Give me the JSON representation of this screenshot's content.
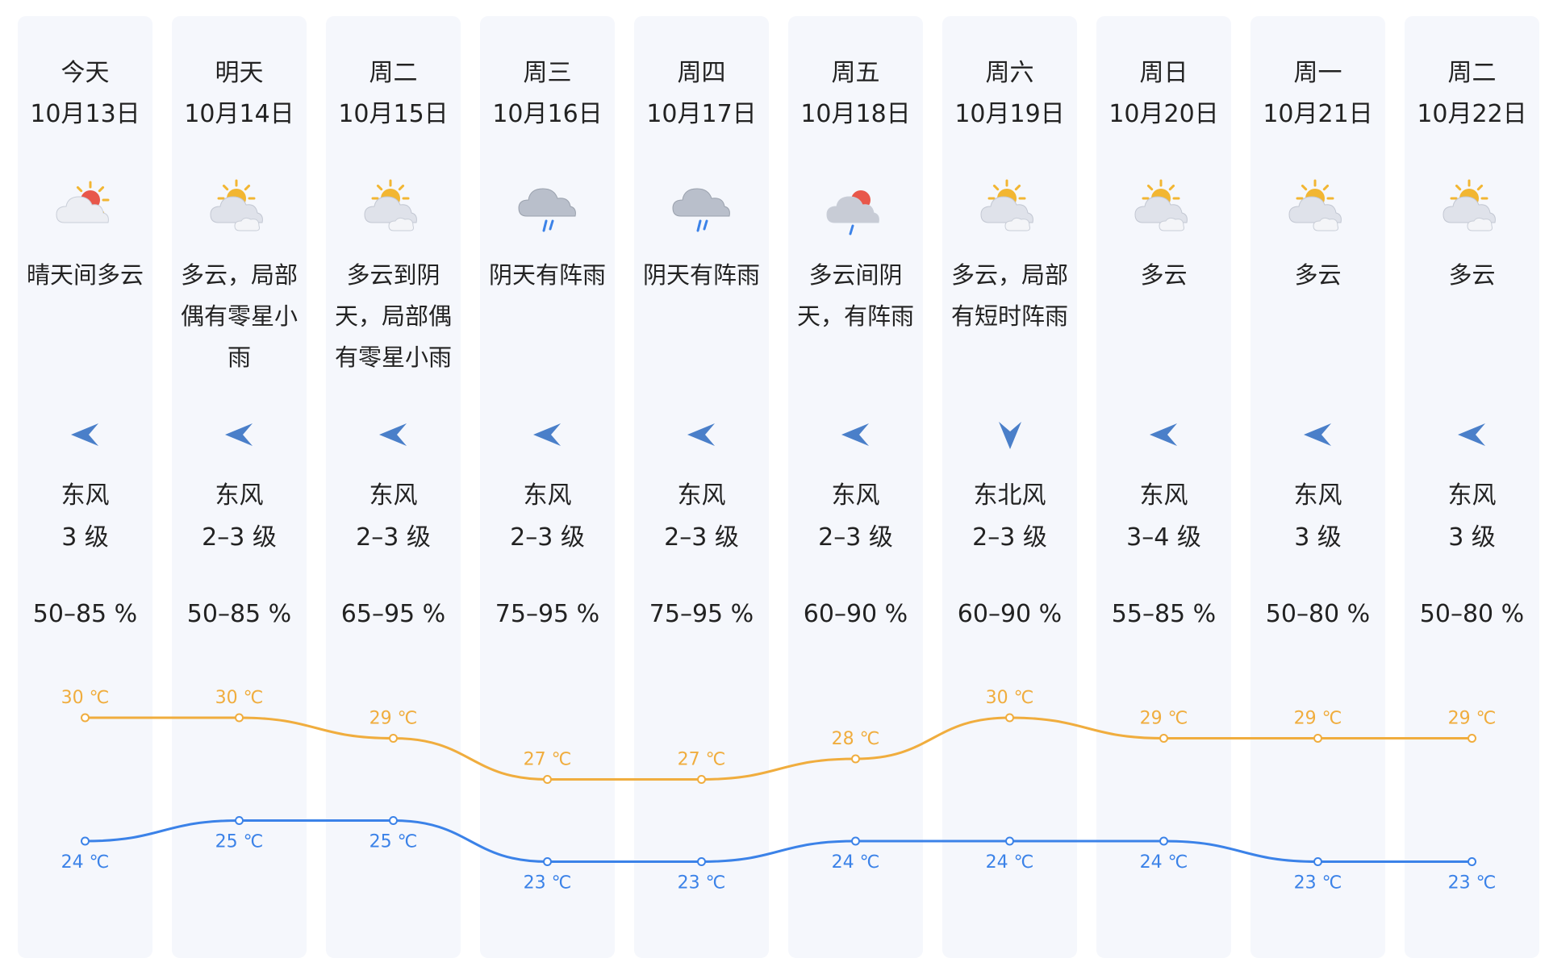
{
  "colors": {
    "high": "#f0ad3e",
    "low": "#3b82e8",
    "column_bg": "#f5f7fc"
  },
  "temp_unit": "℃",
  "humidity_unit": "%",
  "days": [
    {
      "day": "今天",
      "date": "10月13日",
      "icon": "sun-cloud-icon",
      "desc": "晴天间多云",
      "arrow": "wind-east-arrow-icon",
      "wind_dir": "东风",
      "wind_level": "3 级",
      "humidity": "50–85 %",
      "high": 30,
      "low": 24
    },
    {
      "day": "明天",
      "date": "10月14日",
      "icon": "partly-cloudy-icon",
      "desc": "多云，局部偶有零星小雨",
      "arrow": "wind-east-arrow-icon",
      "wind_dir": "东风",
      "wind_level": "2–3 级",
      "humidity": "50–85 %",
      "high": 30,
      "low": 25
    },
    {
      "day": "周二",
      "date": "10月15日",
      "icon": "partly-cloudy-icon",
      "desc": "多云到阴天，局部偶有零星小雨",
      "arrow": "wind-east-arrow-icon",
      "wind_dir": "东风",
      "wind_level": "2–3 级",
      "humidity": "65–95 %",
      "high": 29,
      "low": 25
    },
    {
      "day": "周三",
      "date": "10月16日",
      "icon": "cloud-rain-icon",
      "desc": "阴天有阵雨",
      "arrow": "wind-east-arrow-icon",
      "wind_dir": "东风",
      "wind_level": "2–3 级",
      "humidity": "75–95 %",
      "high": 27,
      "low": 23
    },
    {
      "day": "周四",
      "date": "10月17日",
      "icon": "cloud-rain-icon",
      "desc": "阴天有阵雨",
      "arrow": "wind-east-arrow-icon",
      "wind_dir": "东风",
      "wind_level": "2–3 级",
      "humidity": "75–95 %",
      "high": 27,
      "low": 23
    },
    {
      "day": "周五",
      "date": "10月18日",
      "icon": "sun-cloud-rain-icon",
      "desc": "多云间阴天，有阵雨",
      "arrow": "wind-east-arrow-icon",
      "wind_dir": "东风",
      "wind_level": "2–3 级",
      "humidity": "60–90 %",
      "high": 28,
      "low": 24
    },
    {
      "day": "周六",
      "date": "10月19日",
      "icon": "partly-cloudy-icon",
      "desc": "多云，局部有短时阵雨",
      "arrow": "wind-northeast-arrow-icon",
      "wind_dir": "东北风",
      "wind_level": "2–3 级",
      "humidity": "60–90 %",
      "high": 30,
      "low": 24
    },
    {
      "day": "周日",
      "date": "10月20日",
      "icon": "partly-cloudy-icon",
      "desc": "多云",
      "arrow": "wind-east-arrow-icon",
      "wind_dir": "东风",
      "wind_level": "3–4 级",
      "humidity": "55–85 %",
      "high": 29,
      "low": 24
    },
    {
      "day": "周一",
      "date": "10月21日",
      "icon": "partly-cloudy-icon",
      "desc": "多云",
      "arrow": "wind-east-arrow-icon",
      "wind_dir": "东风",
      "wind_level": "3 级",
      "humidity": "50–80 %",
      "high": 29,
      "low": 23
    },
    {
      "day": "周二",
      "date": "10月22日",
      "icon": "partly-cloudy-icon",
      "desc": "多云",
      "arrow": "wind-east-arrow-icon",
      "wind_dir": "东风",
      "wind_level": "3 级",
      "humidity": "50–80 %",
      "high": 29,
      "low": 23
    }
  ],
  "chart_data": {
    "type": "line",
    "categories": [
      "10月13日",
      "10月14日",
      "10月15日",
      "10月16日",
      "10月17日",
      "10月18日",
      "10月19日",
      "10月20日",
      "10月21日",
      "10月22日"
    ],
    "series": [
      {
        "values": [
          30,
          30,
          29,
          27,
          27,
          28,
          30,
          29,
          29,
          29
        ]
      },
      {
        "values": [
          24,
          25,
          25,
          23,
          23,
          24,
          24,
          24,
          23,
          23
        ]
      }
    ]
  }
}
